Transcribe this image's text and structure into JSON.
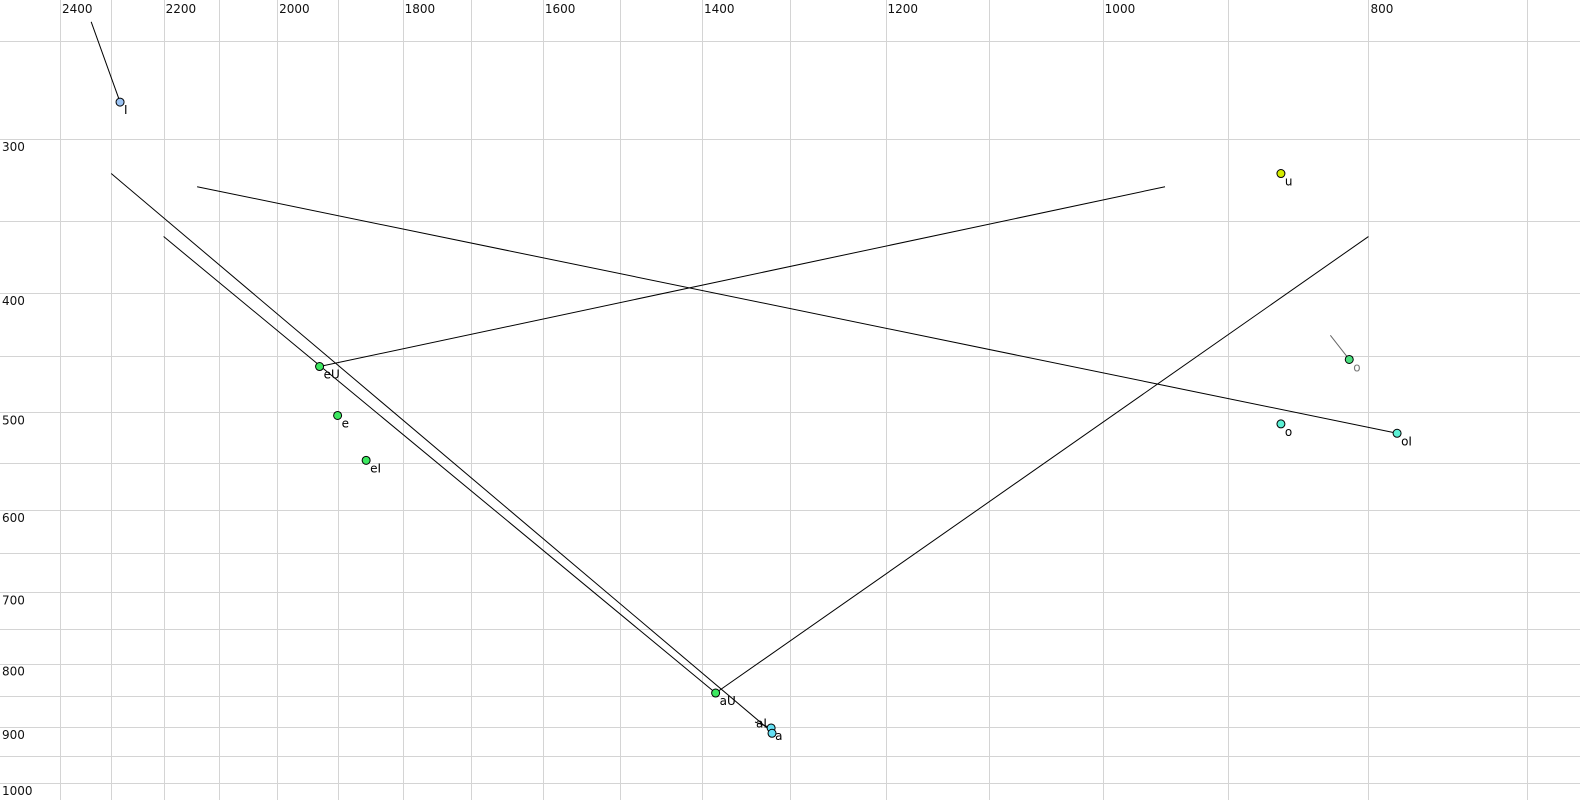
{
  "chart_data": {
    "type": "scatter",
    "title": "",
    "xlabel": "",
    "ylabel": "",
    "x_scale": "log",
    "y_scale": "log",
    "x_reversed": true,
    "xlim": [
      2400,
      700
    ],
    "ylim": [
      250,
      1000
    ],
    "grid": true,
    "x_grid_step": 100,
    "y_grid_step": 50,
    "x_ticks": [
      2400,
      2200,
      2000,
      1800,
      1600,
      1400,
      1200,
      1000,
      800
    ],
    "y_ticks": [
      300,
      400,
      500,
      600,
      700,
      800,
      900,
      1000
    ],
    "points": [
      {
        "label": "I",
        "x": 2282,
        "y": 280,
        "color": "#9cc4f4",
        "label_color": "#000000"
      },
      {
        "label": "u",
        "x": 861,
        "y": 320,
        "color": "#d4ec00",
        "label_color": "#000000"
      },
      {
        "label": "eU",
        "x": 1930,
        "y": 459,
        "color": "#3ce860",
        "label_color": "#000000"
      },
      {
        "label": "e",
        "x": 1901,
        "y": 503,
        "color": "#3ce860",
        "label_color": "#000000"
      },
      {
        "label": "eI",
        "x": 1856,
        "y": 547,
        "color": "#3ce860",
        "label_color": "#000000"
      },
      {
        "label": "aU",
        "x": 1384,
        "y": 845,
        "color": "#3ce860",
        "label_color": "#000000"
      },
      {
        "label": "a",
        "x": 1321,
        "y": 902,
        "color": "#64e0f4",
        "label_color": "#000000"
      },
      {
        "label": "aI",
        "x": 1320,
        "y": 911,
        "color": "#64e0f4",
        "label_color": "#000000"
      },
      {
        "label": "o",
        "x": 813,
        "y": 453,
        "color": "#4ce080",
        "label_color": "#777777"
      },
      {
        "label": "o",
        "x": 861,
        "y": 511,
        "color": "#5cf0d4",
        "label_color": "#000000"
      },
      {
        "label": "oI",
        "x": 781,
        "y": 520,
        "color": "#5cf0d4",
        "label_color": "#000000"
      }
    ],
    "trajectories": [
      {
        "from": [
          2338,
          241
        ],
        "to": [
          2282,
          280
        ],
        "color": "#000000"
      },
      {
        "from": [
          2299,
          320
        ],
        "to": [
          1320,
          909
        ],
        "color": "#000000"
      },
      {
        "from": [
          2200,
          360
        ],
        "to": [
          1384,
          845
        ],
        "color": "#000000"
      },
      {
        "from": [
          1384,
          845
        ],
        "to": [
          800,
          360
        ],
        "color": "#000000"
      },
      {
        "from": [
          1930,
          459
        ],
        "to": [
          949,
          328
        ],
        "color": "#000000"
      },
      {
        "from": [
          2139,
          328
        ],
        "to": [
          781,
          520
        ],
        "color": "#000000"
      },
      {
        "from": [
          826,
          433
        ],
        "to": [
          813,
          453
        ],
        "color": "#666666"
      },
      {
        "from": [
          1339,
          892
        ],
        "to": [
          1321,
          902
        ],
        "color": "#000000"
      }
    ]
  }
}
